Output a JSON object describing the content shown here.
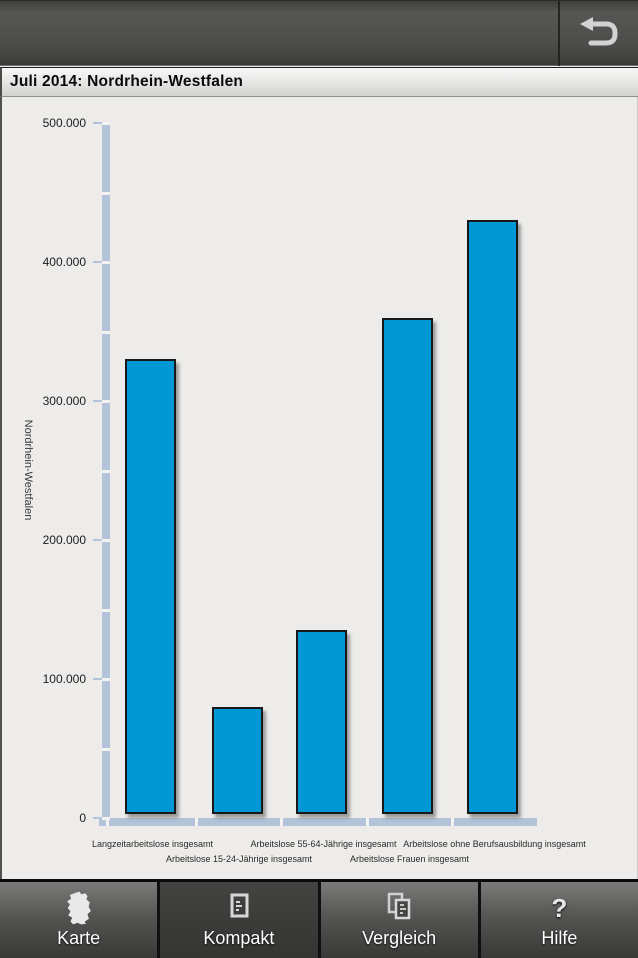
{
  "header": {
    "back_button": {
      "icon": "undo-arrow-icon"
    }
  },
  "title_bar": {
    "title": "Juli 2014: Nordrhein-Westfalen"
  },
  "chart_data": {
    "type": "bar",
    "title": "Juli 2014: Nordrhein-Westfalen",
    "categories": [
      "Langzeitarbeitslose insgesamt",
      "Arbeitslose 15-24-Jährige insgesamt",
      "Arbeitslose 55-64-Jährige insgesamt",
      "Arbeitslose Frauen insgesamt",
      "Arbeitslose ohne Berufsausbildung insgesamt"
    ],
    "values": [
      330000,
      80000,
      135000,
      360000,
      430000
    ],
    "xlabel": "",
    "ylabel": "Nordrhein-Westfalen",
    "ylim": [
      0,
      500000
    ],
    "ytick_step": 100000,
    "ytick_minor_step": 50000,
    "ytick_labels": [
      "0",
      "100.000",
      "200.000",
      "300.000",
      "400.000",
      "500.000"
    ],
    "grid": false,
    "legend": false,
    "bar_color": "#0098d4",
    "bar_border_color": "#16181a",
    "axis_band_color": "#b2c3da",
    "plot_bg": "#edecea"
  },
  "nav": {
    "tabs": [
      {
        "label": "Karte",
        "icon": "germany-map-icon",
        "active": false
      },
      {
        "label": "Kompakt",
        "icon": "compact-page-icon",
        "active": true
      },
      {
        "label": "Vergleich",
        "icon": "compare-pages-icon",
        "active": false
      },
      {
        "label": "Hilfe",
        "icon": "question-mark-icon",
        "active": false
      }
    ]
  },
  "colors": {
    "bar_blue": "#0098d4",
    "axis_band": "#b2c3da",
    "header_dark": "#4a4a48",
    "nav_active": "#3a3a38",
    "chart_bg": "#edecea"
  }
}
